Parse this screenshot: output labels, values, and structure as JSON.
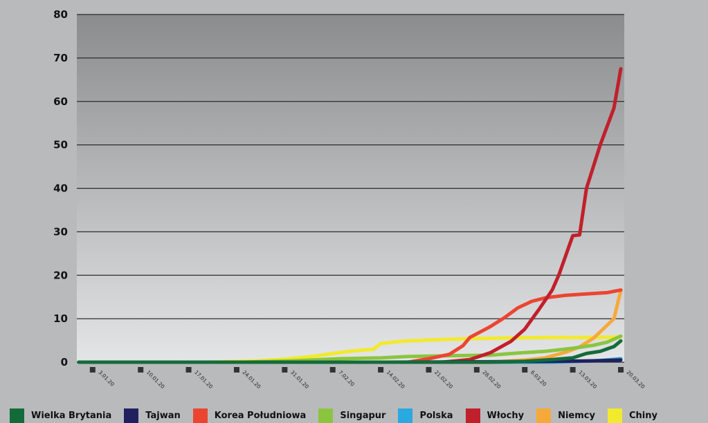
{
  "chart_data": {
    "type": "line",
    "title": "",
    "xlabel": "",
    "ylabel": "",
    "ylim": [
      0,
      80
    ],
    "yticks": [
      0,
      10,
      20,
      30,
      40,
      50,
      60,
      70,
      80
    ],
    "x_start": "2020-01-01",
    "x_end": "2020-03-20",
    "x_tick_labels": [
      "3.01.20",
      "10.01.20",
      "17.01.20",
      "24.01.20",
      "31.01.20",
      "7.02.20",
      "14.02.20",
      "21.02.20",
      "28.02.20",
      "6.03.20",
      "13.03.20",
      "20.03.20"
    ],
    "x_tick_dates": [
      "2020-01-03",
      "2020-01-10",
      "2020-01-17",
      "2020-01-24",
      "2020-01-31",
      "2020-02-07",
      "2020-02-14",
      "2020-02-21",
      "2020-02-28",
      "2020-03-06",
      "2020-03-13",
      "2020-03-20"
    ],
    "grid": true,
    "legend_position": "bottom",
    "series": [
      {
        "name": "Chiny",
        "color": "#f2ea2c",
        "points": [
          [
            "2020-01-01",
            0
          ],
          [
            "2020-01-20",
            0
          ],
          [
            "2020-01-27",
            0.3
          ],
          [
            "2020-01-31",
            0.7
          ],
          [
            "2020-02-04",
            1.3
          ],
          [
            "2020-02-07",
            2.0
          ],
          [
            "2020-02-10",
            2.6
          ],
          [
            "2020-02-13",
            3.0
          ],
          [
            "2020-02-14",
            4.3
          ],
          [
            "2020-02-17",
            4.8
          ],
          [
            "2020-02-21",
            5.1
          ],
          [
            "2020-02-27",
            5.4
          ],
          [
            "2020-03-05",
            5.6
          ],
          [
            "2020-03-10",
            5.7
          ],
          [
            "2020-03-15",
            5.7
          ],
          [
            "2020-03-20",
            5.8
          ]
        ]
      },
      {
        "name": "Niemcy",
        "color": "#f6a93b",
        "points": [
          [
            "2020-01-01",
            0
          ],
          [
            "2020-03-01",
            0
          ],
          [
            "2020-03-06",
            0.5
          ],
          [
            "2020-03-09",
            1.0
          ],
          [
            "2020-03-12",
            2.3
          ],
          [
            "2020-03-14",
            3.5
          ],
          [
            "2020-03-16",
            5.5
          ],
          [
            "2020-03-18",
            8.5
          ],
          [
            "2020-03-19",
            10
          ],
          [
            "2020-03-20",
            16.5
          ]
        ]
      },
      {
        "name": "Singapur",
        "color": "#8bc540",
        "points": [
          [
            "2020-01-01",
            0
          ],
          [
            "2020-01-25",
            0
          ],
          [
            "2020-02-01",
            0.3
          ],
          [
            "2020-02-08",
            0.8
          ],
          [
            "2020-02-14",
            1.0
          ],
          [
            "2020-02-18",
            1.3
          ],
          [
            "2020-02-24",
            1.5
          ],
          [
            "2020-03-01",
            1.6
          ],
          [
            "2020-03-05",
            2.1
          ],
          [
            "2020-03-09",
            2.5
          ],
          [
            "2020-03-13",
            3.2
          ],
          [
            "2020-03-16",
            3.9
          ],
          [
            "2020-03-18",
            4.6
          ],
          [
            "2020-03-20",
            6.0
          ]
        ]
      },
      {
        "name": "Korea Południowa",
        "color": "#eb4532",
        "points": [
          [
            "2020-01-01",
            0
          ],
          [
            "2020-02-18",
            0
          ],
          [
            "2020-02-21",
            0.8
          ],
          [
            "2020-02-24",
            1.8
          ],
          [
            "2020-02-26",
            3.8
          ],
          [
            "2020-02-27",
            5.7
          ],
          [
            "2020-03-01",
            8.2
          ],
          [
            "2020-03-03",
            10.2
          ],
          [
            "2020-03-05",
            12.5
          ],
          [
            "2020-03-07",
            14.0
          ],
          [
            "2020-03-09",
            14.8
          ],
          [
            "2020-03-12",
            15.4
          ],
          [
            "2020-03-15",
            15.7
          ],
          [
            "2020-03-18",
            16.0
          ],
          [
            "2020-03-20",
            16.6
          ]
        ]
      },
      {
        "name": "Włochy",
        "color": "#c0202c",
        "points": [
          [
            "2020-01-01",
            0
          ],
          [
            "2020-02-23",
            0
          ],
          [
            "2020-02-27",
            0.6
          ],
          [
            "2020-03-01",
            2.2
          ],
          [
            "2020-03-04",
            4.8
          ],
          [
            "2020-03-06",
            7.6
          ],
          [
            "2020-03-08",
            12.0
          ],
          [
            "2020-03-10",
            16.6
          ],
          [
            "2020-03-11",
            20.2
          ],
          [
            "2020-03-13",
            29.1
          ],
          [
            "2020-03-14",
            29.3
          ],
          [
            "2020-03-15",
            40.0
          ],
          [
            "2020-03-17",
            50.0
          ],
          [
            "2020-03-19",
            58.5
          ],
          [
            "2020-03-20",
            67.5
          ]
        ]
      },
      {
        "name": "Polska",
        "color": "#2aa8e0",
        "points": [
          [
            "2020-01-01",
            0
          ],
          [
            "2020-03-10",
            0
          ],
          [
            "2020-03-14",
            0.2
          ],
          [
            "2020-03-17",
            0.4
          ],
          [
            "2020-03-20",
            0.8
          ]
        ]
      },
      {
        "name": "Tajwan",
        "color": "#21205e",
        "points": [
          [
            "2020-01-01",
            0
          ],
          [
            "2020-02-15",
            0
          ],
          [
            "2020-03-01",
            0.1
          ],
          [
            "2020-03-10",
            0.2
          ],
          [
            "2020-03-16",
            0.3
          ],
          [
            "2020-03-20",
            0.5
          ]
        ]
      },
      {
        "name": "Wielka Brytania",
        "color": "#146b3a",
        "points": [
          [
            "2020-01-01",
            0
          ],
          [
            "2020-03-01",
            0
          ],
          [
            "2020-03-06",
            0.2
          ],
          [
            "2020-03-10",
            0.6
          ],
          [
            "2020-03-13",
            1.0
          ],
          [
            "2020-03-15",
            2.0
          ],
          [
            "2020-03-17",
            2.5
          ],
          [
            "2020-03-19",
            3.6
          ],
          [
            "2020-03-20",
            4.9
          ]
        ]
      }
    ],
    "legend_order": [
      "Wielka Brytania",
      "Tajwan",
      "Korea Południowa",
      "Singapur",
      "Polska",
      "Włochy",
      "Niemcy",
      "Chiny"
    ]
  }
}
